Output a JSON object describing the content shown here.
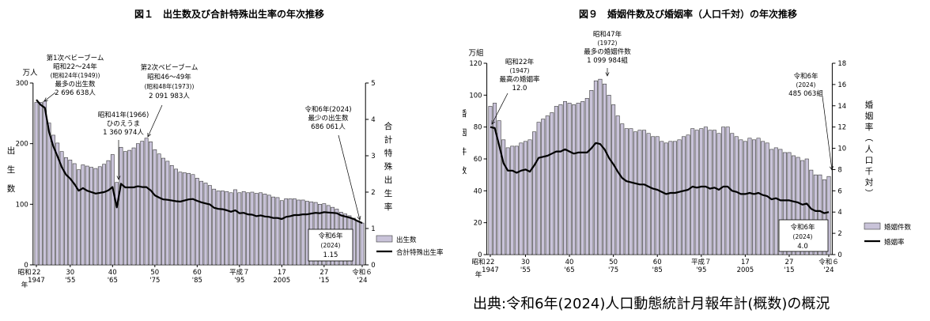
{
  "source_note": "出典:令和6年(2024)人口動態統計月報年計(概数)の概況",
  "chart_data": [
    {
      "type": "bar",
      "title": "図１　出生数及び合計特殊出生率の年次推移",
      "y_unit_left": "万人",
      "ylabel_left": "出生数",
      "ylabel_right": "合計特殊出生率",
      "ylim_left": [
        0,
        300
      ],
      "ylim_right": [
        0,
        5
      ],
      "yticks_left": [
        "0",
        "100",
        "200",
        "300"
      ],
      "yticks_right": [
        "0",
        "1",
        "2",
        "3",
        "4",
        "5"
      ],
      "x_era_label": "昭和",
      "x_year_word": "年",
      "xticks": [
        {
          "year": 1947,
          "top": "22",
          "bottom": "1947"
        },
        {
          "year": 1955,
          "top": "30",
          "bottom": "'55"
        },
        {
          "year": 1965,
          "top": "40",
          "bottom": "'65"
        },
        {
          "year": 1975,
          "top": "50",
          "bottom": "'75"
        },
        {
          "year": 1985,
          "top": "60",
          "bottom": "'85"
        },
        {
          "year": 1995,
          "top": "平成７",
          "bottom": "'95"
        },
        {
          "year": 2005,
          "top": "17",
          "bottom": "2005"
        },
        {
          "year": 2015,
          "top": "27",
          "bottom": "'15"
        },
        {
          "year": 2024,
          "top": "令和６",
          "bottom": "'24"
        }
      ],
      "legend": [
        {
          "label": "出生数",
          "type": "bar"
        },
        {
          "label": "合計特殊出生率",
          "type": "line"
        }
      ],
      "annotations": [
        {
          "id": "boom1",
          "lines": [
            "第1次ベビーブーム",
            "昭和22～24年",
            "(昭和24年(1949))",
            "最多の出生数",
            "2 696 638人"
          ]
        },
        {
          "id": "hinoeuma",
          "lines": [
            "昭和41年(1966)",
            "ひのえうま",
            "1 360 974人"
          ]
        },
        {
          "id": "boom2",
          "lines": [
            "第2次ベビーブーム",
            "昭和46～49年",
            "(昭和48年(1973))",
            "2 091 983人"
          ]
        },
        {
          "id": "min2024",
          "lines": [
            "令和6年(2024)",
            "最少の出生数",
            "686 061人"
          ]
        },
        {
          "id": "tfr2024",
          "lines": [
            "令和6年",
            "(2024)",
            "1.15"
          ]
        }
      ],
      "x": [
        1947,
        1948,
        1949,
        1950,
        1951,
        1952,
        1953,
        1954,
        1955,
        1956,
        1957,
        1958,
        1959,
        1960,
        1961,
        1962,
        1963,
        1964,
        1965,
        1966,
        1967,
        1968,
        1969,
        1970,
        1971,
        1972,
        1973,
        1974,
        1975,
        1976,
        1977,
        1978,
        1979,
        1980,
        1981,
        1982,
        1983,
        1984,
        1985,
        1986,
        1987,
        1988,
        1989,
        1990,
        1991,
        1992,
        1993,
        1994,
        1995,
        1996,
        1997,
        1998,
        1999,
        2000,
        2001,
        2002,
        2003,
        2004,
        2005,
        2006,
        2007,
        2008,
        2009,
        2010,
        2011,
        2012,
        2013,
        2014,
        2015,
        2016,
        2017,
        2018,
        2019,
        2020,
        2021,
        2022,
        2023,
        2024
      ],
      "series": [
        {
          "name": "出生数",
          "axis": "left",
          "values": [
            268,
            268,
            270,
            234,
            214,
            201,
            187,
            177,
            173,
            167,
            157,
            165,
            163,
            161,
            159,
            162,
            166,
            172,
            182,
            136,
            194,
            187,
            189,
            193,
            200,
            204,
            209,
            203,
            190,
            183,
            176,
            171,
            164,
            158,
            153,
            152,
            151,
            149,
            143,
            138,
            135,
            131,
            125,
            122,
            122,
            121,
            119,
            124,
            119,
            121,
            119,
            120,
            118,
            119,
            117,
            115,
            112,
            111,
            106,
            109,
            109,
            109,
            107,
            107,
            105,
            104,
            103,
            100,
            101,
            98,
            95,
            92,
            87,
            84,
            81,
            77,
            73,
            69
          ]
        },
        {
          "name": "合計特殊出生率",
          "axis": "right",
          "values": [
            4.54,
            4.4,
            4.32,
            3.65,
            3.26,
            2.98,
            2.69,
            2.48,
            2.37,
            2.22,
            2.04,
            2.11,
            2.04,
            2.0,
            1.96,
            1.98,
            2.0,
            2.05,
            2.14,
            1.58,
            2.23,
            2.13,
            2.13,
            2.13,
            2.16,
            2.14,
            2.14,
            2.05,
            1.91,
            1.85,
            1.8,
            1.79,
            1.77,
            1.75,
            1.74,
            1.77,
            1.8,
            1.81,
            1.76,
            1.72,
            1.69,
            1.66,
            1.57,
            1.54,
            1.53,
            1.5,
            1.46,
            1.5,
            1.42,
            1.43,
            1.39,
            1.38,
            1.34,
            1.36,
            1.33,
            1.32,
            1.29,
            1.29,
            1.26,
            1.32,
            1.34,
            1.37,
            1.37,
            1.39,
            1.39,
            1.41,
            1.43,
            1.42,
            1.45,
            1.44,
            1.43,
            1.42,
            1.36,
            1.33,
            1.3,
            1.26,
            1.2,
            1.15
          ]
        }
      ]
    },
    {
      "type": "bar",
      "title": "図９　婚姻件数及び婚姻率（人口千対）の年次推移",
      "y_unit_left": "万組",
      "ylabel_left": "婚姻件数",
      "ylabel_right": "婚姻率（人口千対）",
      "ylim_left": [
        0,
        120
      ],
      "ylim_right": [
        0,
        18
      ],
      "yticks_left": [
        "0",
        "20",
        "40",
        "60",
        "80",
        "100",
        "120"
      ],
      "yticks_right": [
        "0",
        "2",
        "4",
        "6",
        "8",
        "10",
        "12",
        "14",
        "16",
        "18"
      ],
      "x_era_label": "昭和",
      "x_year_word": "年",
      "xticks": [
        {
          "year": 1947,
          "top": "22",
          "bottom": "1947"
        },
        {
          "year": 1955,
          "top": "30",
          "bottom": "'55"
        },
        {
          "year": 1965,
          "top": "40",
          "bottom": "'65"
        },
        {
          "year": 1975,
          "top": "50",
          "bottom": "'75"
        },
        {
          "year": 1985,
          "top": "60",
          "bottom": "'85"
        },
        {
          "year": 1995,
          "top": "平成７",
          "bottom": "'95"
        },
        {
          "year": 2005,
          "top": "17",
          "bottom": "2005"
        },
        {
          "year": 2015,
          "top": "27",
          "bottom": "'15"
        },
        {
          "year": 2024,
          "top": "令和６",
          "bottom": "'24"
        }
      ],
      "legend": [
        {
          "label": "婚姻件数",
          "type": "bar"
        },
        {
          "label": "婚姻率",
          "type": "line"
        }
      ],
      "annotations": [
        {
          "id": "rate1947",
          "lines": [
            "昭和22年",
            "(1947)",
            "最高の婚姻率",
            "12.0"
          ]
        },
        {
          "id": "max1972",
          "lines": [
            "昭和47年",
            "(1972)",
            "最多の婚姻件数",
            "1 099 984組"
          ]
        },
        {
          "id": "count2024",
          "lines": [
            "令和6年",
            "(2024)",
            "485 063組"
          ]
        },
        {
          "id": "rate2024",
          "lines": [
            "令和6年",
            "(2024)",
            "4.0"
          ]
        }
      ],
      "x": [
        1947,
        1948,
        1949,
        1950,
        1951,
        1952,
        1953,
        1954,
        1955,
        1956,
        1957,
        1958,
        1959,
        1960,
        1961,
        1962,
        1963,
        1964,
        1965,
        1966,
        1967,
        1968,
        1969,
        1970,
        1971,
        1972,
        1973,
        1974,
        1975,
        1976,
        1977,
        1978,
        1979,
        1980,
        1981,
        1982,
        1983,
        1984,
        1985,
        1986,
        1987,
        1988,
        1989,
        1990,
        1991,
        1992,
        1993,
        1994,
        1995,
        1996,
        1997,
        1998,
        1999,
        2000,
        2001,
        2002,
        2003,
        2004,
        2005,
        2006,
        2007,
        2008,
        2009,
        2010,
        2011,
        2012,
        2013,
        2014,
        2015,
        2016,
        2017,
        2018,
        2019,
        2020,
        2021,
        2022,
        2023,
        2024
      ],
      "series": [
        {
          "name": "婚姻件数",
          "axis": "left",
          "values": [
            93,
            95,
            84,
            72,
            67,
            68,
            68,
            70,
            71,
            72,
            77,
            83,
            85,
            87,
            89,
            93,
            94,
            96,
            95,
            94,
            95,
            96,
            98,
            103,
            109,
            110,
            107,
            100,
            94,
            87,
            82,
            79,
            79,
            77,
            78,
            78,
            76,
            74,
            74,
            71,
            70,
            71,
            71,
            72,
            74,
            75,
            79,
            78,
            79,
            80,
            78,
            78,
            76,
            80,
            80,
            76,
            74,
            72,
            71,
            73,
            72,
            73,
            71,
            70,
            66,
            67,
            66,
            64,
            64,
            62,
            61,
            59,
            60,
            53,
            50,
            50,
            47,
            49
          ]
        },
        {
          "name": "婚姻率",
          "axis": "right",
          "values": [
            12.0,
            11.9,
            10.3,
            8.6,
            7.9,
            7.9,
            7.7,
            7.9,
            8.0,
            7.8,
            8.4,
            9.1,
            9.2,
            9.3,
            9.5,
            9.7,
            9.7,
            9.9,
            9.7,
            9.5,
            9.6,
            9.6,
            9.6,
            10.0,
            10.5,
            10.4,
            9.9,
            9.1,
            8.5,
            7.8,
            7.2,
            6.9,
            6.8,
            6.7,
            6.6,
            6.6,
            6.4,
            6.2,
            6.1,
            5.9,
            5.7,
            5.8,
            5.8,
            5.9,
            6.0,
            6.1,
            6.4,
            6.3,
            6.4,
            6.4,
            6.2,
            6.3,
            6.1,
            6.4,
            6.4,
            6.0,
            5.9,
            5.7,
            5.7,
            5.8,
            5.7,
            5.8,
            5.6,
            5.5,
            5.2,
            5.3,
            5.1,
            5.1,
            5.1,
            5.0,
            4.9,
            4.7,
            4.8,
            4.3,
            4.1,
            4.1,
            3.9,
            4.0
          ]
        }
      ]
    }
  ]
}
